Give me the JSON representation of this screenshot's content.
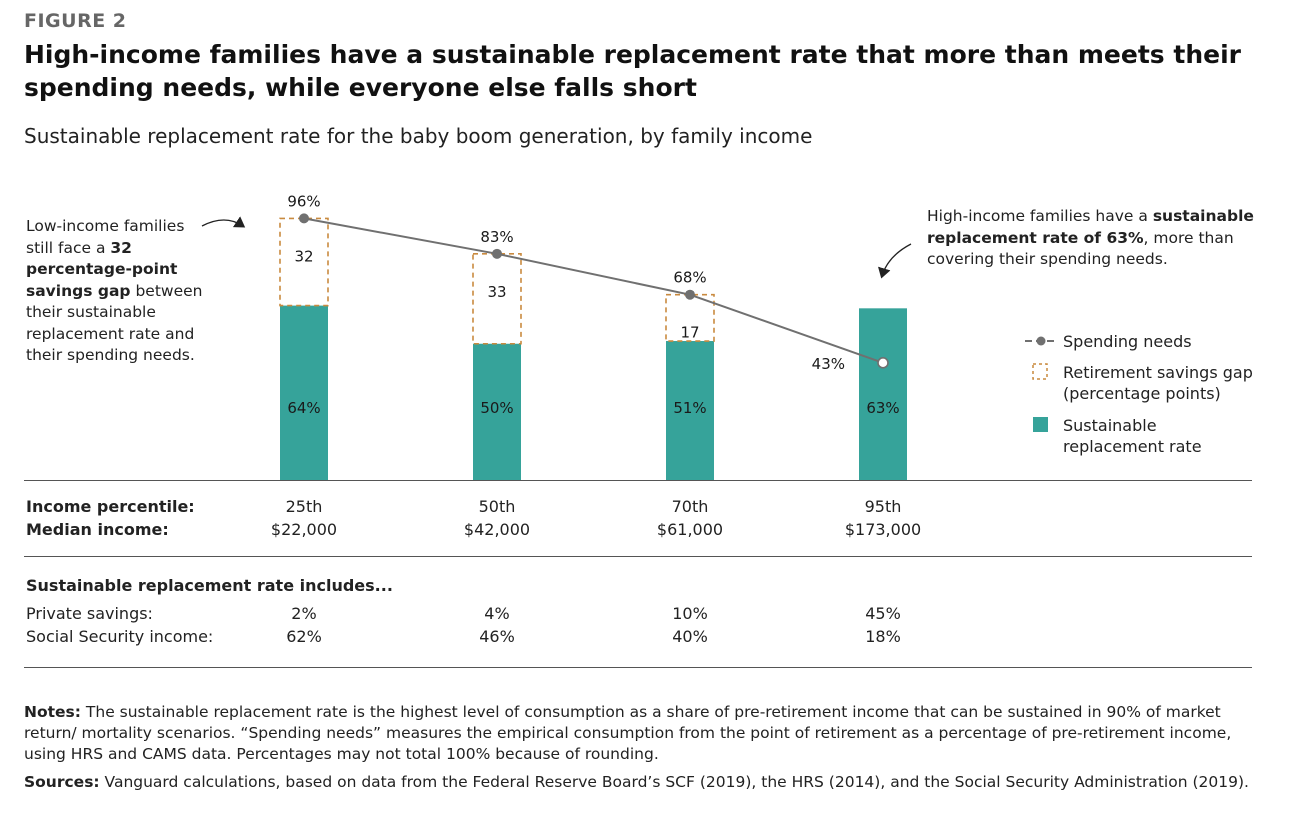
{
  "figure_label": "FIGURE 2",
  "title": "High-income families have a sustainable replacement rate that more than meets their spending needs, while everyone else falls short",
  "subtitle": "Sustainable replacement rate for the baby boom generation, by family income",
  "callout_left": {
    "line1": "Low-income families",
    "line2_pre": "still face a ",
    "line2_bold": "32",
    "line3_bold": "percentage-point",
    "line4_bold": "savings gap",
    "line4_post": " between",
    "line5": "their sustainable",
    "line6": "replacement rate and",
    "line7": "their spending needs."
  },
  "callout_right": {
    "line1_pre": "High-income families have a ",
    "line1_bold": "sustainable",
    "line2_bold": "replacement rate of 63%",
    "line2_post": ", more than",
    "line3": "covering their spending needs."
  },
  "legend": {
    "spending": "Spending needs",
    "gap_line1": "Retirement savings gap",
    "gap_line2": "(percentage points)",
    "rate_line1": "Sustainable",
    "rate_line2": "replacement rate"
  },
  "colors": {
    "teal": "#36a39a",
    "gap_border": "#c98a3f",
    "line": "#707070"
  },
  "chart_data": {
    "type": "bar",
    "categories": [
      "25th",
      "50th",
      "70th",
      "95th"
    ],
    "series": [
      {
        "name": "Sustainable replacement rate",
        "values": [
          64,
          50,
          51,
          63
        ],
        "labels": [
          "64%",
          "50%",
          "51%",
          "63%"
        ]
      },
      {
        "name": "Retirement savings gap (percentage points)",
        "values": [
          32,
          33,
          17,
          null
        ],
        "labels": [
          "32",
          "33",
          "17",
          ""
        ]
      },
      {
        "name": "Spending needs",
        "type": "line",
        "values": [
          96,
          83,
          68,
          43
        ],
        "labels": [
          "96%",
          "83%",
          "68%",
          "43%"
        ]
      }
    ],
    "ylim": [
      0,
      100
    ]
  },
  "table": {
    "income_percentile_label": "Income percentile:",
    "median_income_label": "Median income:",
    "columns": [
      {
        "percentile": "25th",
        "income": "$22,000",
        "private": "2%",
        "social": "62%"
      },
      {
        "percentile": "50th",
        "income": "$42,000",
        "private": "4%",
        "social": "46%"
      },
      {
        "percentile": "70th",
        "income": "$61,000",
        "private": "10%",
        "social": "40%"
      },
      {
        "percentile": "95th",
        "income": "$173,000",
        "private": "45%",
        "social": "18%"
      }
    ],
    "includes_heading": "Sustainable replacement rate includes...",
    "private_label": "Private savings:",
    "social_label": "Social Security income:"
  },
  "notes": {
    "label": "Notes:",
    "text": " The sustainable replacement rate is the highest level of consumption as a share of pre-retirement income that can be sustained in 90% of market return/ mortality scenarios. “Spending needs” measures the empirical consumption from the point of retirement as a percentage of pre-retirement income, using HRS and CAMS data. Percentages may not total 100% because of rounding."
  },
  "sources": {
    "label": "Sources:",
    "text": " Vanguard calculations, based on data from the Federal Reserve Board’s SCF (2019), the HRS (2014), and the Social Security Administration (2019)."
  }
}
